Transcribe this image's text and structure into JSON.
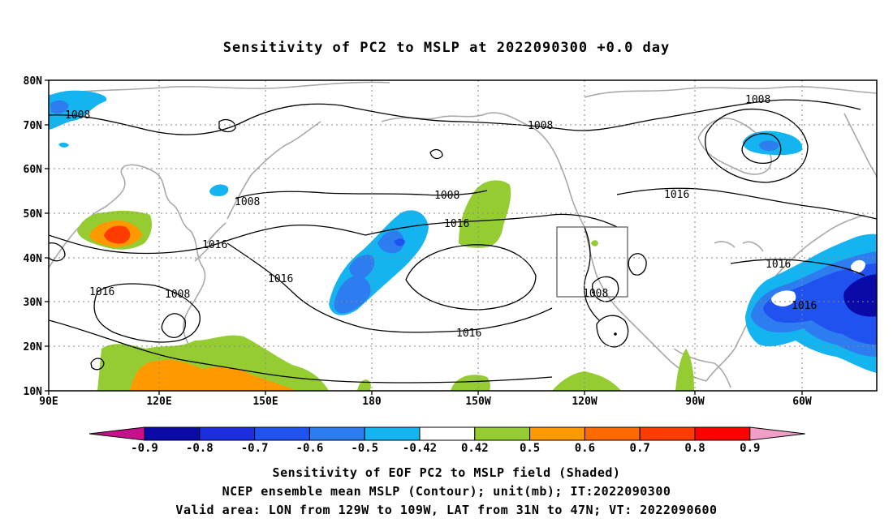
{
  "title": "Sensitivity of PC2 to MSLP at 2022090300 +0.0 day",
  "map": {
    "lat_ticks": [
      "80N",
      "70N",
      "60N",
      "50N",
      "40N",
      "30N",
      "20N",
      "10N"
    ],
    "lon_ticks": [
      "90E",
      "120E",
      "150E",
      "180",
      "150W",
      "120W",
      "90W",
      "60W"
    ],
    "valid_box": {
      "lon_from": "129W",
      "lon_to": "109W",
      "lat_from": "31N",
      "lat_to": "47N"
    },
    "contour_labels": [
      {
        "id": "c1",
        "text": "1008"
      },
      {
        "id": "c2",
        "text": "1008"
      },
      {
        "id": "c3",
        "text": "1008"
      },
      {
        "id": "c4",
        "text": "1008"
      },
      {
        "id": "c5",
        "text": "1008"
      },
      {
        "id": "c6",
        "text": "1008"
      },
      {
        "id": "c7",
        "text": "1016"
      },
      {
        "id": "c8",
        "text": "1016"
      },
      {
        "id": "c9",
        "text": "1016"
      },
      {
        "id": "c10",
        "text": "1016"
      },
      {
        "id": "c11",
        "text": "1016"
      },
      {
        "id": "c12",
        "text": "1016"
      },
      {
        "id": "c13",
        "text": "1016"
      },
      {
        "id": "c14",
        "text": "1016"
      }
    ]
  },
  "colorbar": {
    "labels": [
      "-0.9",
      "-0.8",
      "-0.7",
      "-0.6",
      "-0.5",
      "-0.42",
      "0.42",
      "0.5",
      "0.6",
      "0.7",
      "0.8",
      "0.9"
    ],
    "colors": [
      "#0a0aa8",
      "#1a2ee0",
      "#1f52ee",
      "#2e7df0",
      "#14b4f0",
      "#ffffff",
      "#94cc32",
      "#ff9900",
      "#ff6a00",
      "#ff3c00",
      "#ff0000"
    ],
    "low_end_color": "#c8108c",
    "high_end_color": "#f0a0c8"
  },
  "captions": [
    "Sensitivity of EOF PC2 to MSLP field (Shaded)",
    "NCEP ensemble mean MSLP (Contour); unit(mb); IT:2022090300",
    "Valid area: LON from 129W to 109W, LAT from 31N to 47N; VT: 2022090600"
  ]
}
